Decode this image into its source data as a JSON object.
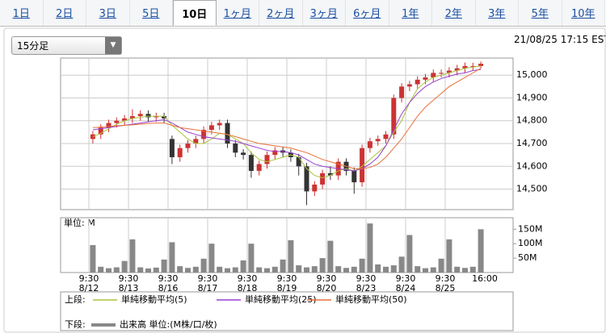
{
  "tabs": [
    "1日",
    "2日",
    "3日",
    "5日",
    "10日",
    "1ヶ月",
    "2ヶ月",
    "3ヶ月",
    "6ヶ月",
    "1年",
    "2年",
    "3年",
    "5年",
    "10年"
  ],
  "selected_tab": 4,
  "dropdown": "15分足",
  "timestamp": "21/08/25 17:15 EST",
  "chart_data": {
    "type": "candlestick",
    "categories": [
      "9:30\n8/12",
      null,
      null,
      null,
      null,
      "9:30\n8/13",
      null,
      null,
      null,
      null,
      "9:30\n8/16",
      null,
      null,
      null,
      null,
      "9:30\n8/17",
      null,
      null,
      null,
      null,
      "9:30\n8/18",
      null,
      null,
      null,
      null,
      "9:30\n8/19",
      null,
      null,
      null,
      null,
      "9:30\n8/20",
      null,
      null,
      null,
      null,
      "9:30\n8/23",
      null,
      null,
      null,
      null,
      "9:30\n8/24",
      null,
      null,
      null,
      null,
      "9:30\n8/25",
      null,
      null,
      null,
      null
    ],
    "x_end_label": "16:00",
    "open": [
      14720,
      14740,
      14770,
      14790,
      14800,
      14810,
      14820,
      14830,
      14815,
      14820,
      14720,
      14640,
      14680,
      14700,
      14720,
      14760,
      14780,
      14790,
      14700,
      14660,
      14650,
      14580,
      14610,
      14650,
      14670,
      14660,
      14640,
      14600,
      14490,
      14520,
      14570,
      14560,
      14620,
      14580,
      14530,
      14680,
      14710,
      14720,
      14740,
      14900,
      14950,
      14960,
      14980,
      14990,
      15010,
      15010,
      15020,
      15030,
      15040,
      15040
    ],
    "high": [
      14755,
      14785,
      14805,
      14815,
      14825,
      14850,
      14845,
      14845,
      14835,
      14835,
      14735,
      14695,
      14715,
      14735,
      14775,
      14795,
      14805,
      14805,
      14715,
      14675,
      14665,
      14625,
      14665,
      14685,
      14685,
      14675,
      14655,
      14615,
      14535,
      14585,
      14600,
      14635,
      14635,
      14595,
      14695,
      14725,
      14735,
      14755,
      14915,
      14965,
      14975,
      14995,
      15005,
      15025,
      15025,
      15035,
      15045,
      15055,
      15055,
      15060
    ],
    "low": [
      14700,
      14720,
      14750,
      14770,
      14780,
      14790,
      14800,
      14795,
      14795,
      14790,
      14610,
      14620,
      14660,
      14680,
      14700,
      14740,
      14760,
      14680,
      14640,
      14630,
      14550,
      14560,
      14590,
      14630,
      14640,
      14620,
      14560,
      14430,
      14470,
      14500,
      14540,
      14540,
      14560,
      14480,
      14510,
      14660,
      14690,
      14700,
      14720,
      14880,
      14930,
      14940,
      14960,
      14970,
      14990,
      14990,
      15000,
      15010,
      15020,
      15030
    ],
    "close": [
      14740,
      14770,
      14790,
      14800,
      14810,
      14820,
      14830,
      14815,
      14820,
      14810,
      14640,
      14680,
      14700,
      14720,
      14760,
      14780,
      14790,
      14700,
      14660,
      14650,
      14580,
      14610,
      14650,
      14670,
      14660,
      14640,
      14600,
      14490,
      14520,
      14570,
      14560,
      14620,
      14580,
      14530,
      14680,
      14710,
      14720,
      14740,
      14900,
      14950,
      14960,
      14980,
      14990,
      15010,
      15010,
      15020,
      15030,
      15040,
      15040,
      15050
    ],
    "color_up": "#cc3333",
    "color_down": "#333333",
    "series": [
      {
        "name": "単純移動平均(5)",
        "color": "#a8c43c",
        "values": [
          14730,
          14745,
          14765,
          14785,
          14800,
          14810,
          14815,
          14820,
          14820,
          14820,
          14780,
          14750,
          14720,
          14700,
          14700,
          14720,
          14745,
          14740,
          14720,
          14700,
          14660,
          14630,
          14620,
          14630,
          14640,
          14650,
          14640,
          14590,
          14560,
          14550,
          14560,
          14580,
          14590,
          14580,
          14600,
          14630,
          14660,
          14690,
          14750,
          14800,
          14880,
          14940,
          14970,
          14990,
          15000,
          15010,
          15020,
          15030,
          15035,
          15040
        ]
      },
      {
        "name": "単純移動平均(25)",
        "color": "#9a3fd0",
        "values": [
          14760,
          14765,
          14770,
          14775,
          14780,
          14785,
          14790,
          14795,
          14800,
          14805,
          14790,
          14770,
          14750,
          14740,
          14730,
          14725,
          14720,
          14715,
          14710,
          14700,
          14690,
          14680,
          14670,
          14665,
          14665,
          14660,
          14650,
          14630,
          14610,
          14600,
          14595,
          14590,
          14585,
          14580,
          14590,
          14610,
          14640,
          14690,
          14760,
          14830,
          14880,
          14920,
          14950,
          14970,
          14985,
          14995,
          15005,
          15010,
          15020,
          15025
        ]
      },
      {
        "name": "単純移動平均(50)",
        "color": "#e8703a",
        "values": [
          14770,
          14772,
          14775,
          14778,
          14780,
          14782,
          14785,
          14788,
          14790,
          14790,
          14780,
          14770,
          14765,
          14760,
          14755,
          14750,
          14745,
          14740,
          14730,
          14720,
          14710,
          14700,
          14695,
          14690,
          14685,
          14680,
          14670,
          14660,
          14645,
          14630,
          14620,
          14610,
          14600,
          14590,
          14590,
          14595,
          14610,
          14640,
          14680,
          14720,
          14770,
          14820,
          14860,
          14890,
          14920,
          14950,
          14970,
          14990,
          15010,
          15030
        ]
      }
    ],
    "ylim": [
      14410,
      15075
    ],
    "yticks": [
      {
        "value": 14500,
        "label": "14,500"
      },
      {
        "value": 14600,
        "label": "14,600"
      },
      {
        "value": 14700,
        "label": "14,700"
      },
      {
        "value": 14800,
        "label": "14,800"
      },
      {
        "value": 14900,
        "label": "14,900"
      },
      {
        "value": 15000,
        "label": "15,000"
      }
    ],
    "grid": true,
    "volume": {
      "unit_label": "単位: M",
      "color": "#888888",
      "values": [
        95,
        20,
        15,
        18,
        40,
        115,
        18,
        14,
        17,
        45,
        105,
        22,
        16,
        20,
        48,
        100,
        20,
        15,
        18,
        42,
        100,
        18,
        15,
        20,
        45,
        112,
        25,
        18,
        22,
        50,
        110,
        22,
        16,
        20,
        48,
        170,
        28,
        20,
        25,
        55,
        130,
        22,
        15,
        18,
        48,
        115,
        20,
        16,
        20,
        150
      ],
      "ylim": [
        0,
        190
      ],
      "yticks": [
        {
          "value": 50,
          "label": "50M"
        },
        {
          "value": 100,
          "label": "100M"
        },
        {
          "value": 150,
          "label": "150M"
        }
      ]
    },
    "legend_upper": "上段:",
    "legend_lower": "下段:",
    "volume_name": "出来高 単位:(M株/口/枚)"
  }
}
